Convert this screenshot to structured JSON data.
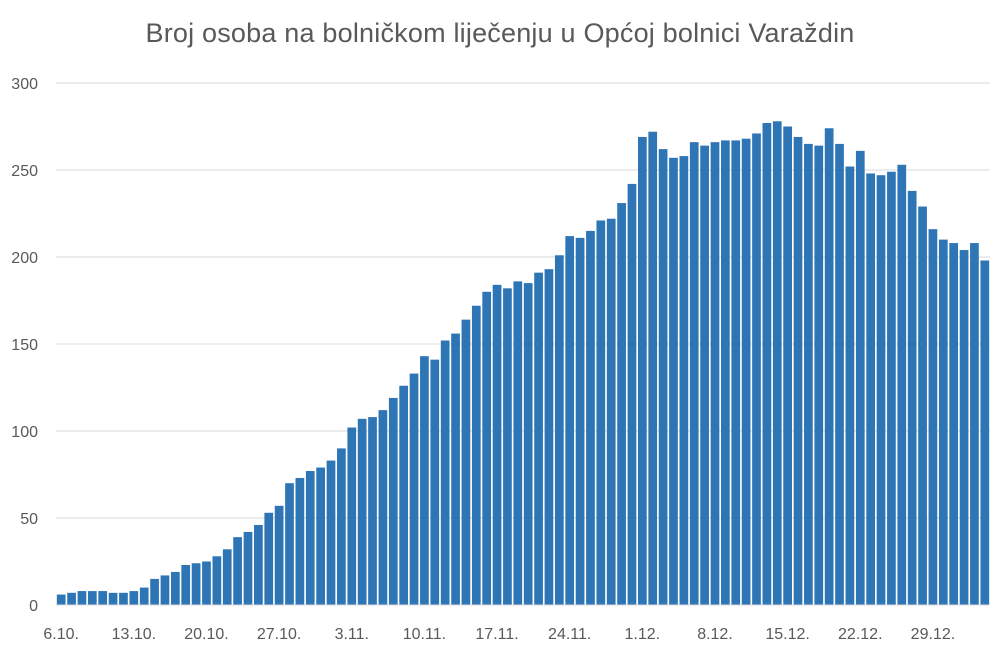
{
  "chart_data": {
    "type": "bar",
    "title": "Broj osoba na bolničkom liječenju u Općoj bolnici Varaždin",
    "xlabel": "",
    "ylabel": "",
    "ylim": [
      0,
      300
    ],
    "yticks": [
      "0",
      "50",
      "100",
      "150",
      "200",
      "250",
      "300"
    ],
    "xtick_labels": [
      "6.10.",
      "13.10.",
      "20.10.",
      "27.10.",
      "3.11.",
      "10.11.",
      "17.11.",
      "24.11.",
      "1.12.",
      "8.12.",
      "15.12.",
      "22.12.",
      "29.12."
    ],
    "grid": true,
    "bar_color": "#2E75B6",
    "values": [
      6,
      7,
      8,
      8,
      8,
      7,
      7,
      8,
      10,
      15,
      17,
      19,
      23,
      24,
      25,
      28,
      32,
      39,
      42,
      46,
      53,
      57,
      70,
      73,
      77,
      79,
      83,
      90,
      102,
      107,
      108,
      112,
      119,
      126,
      133,
      143,
      141,
      152,
      156,
      164,
      172,
      180,
      184,
      182,
      186,
      185,
      191,
      193,
      201,
      212,
      211,
      215,
      221,
      222,
      231,
      242,
      269,
      272,
      262,
      257,
      258,
      266,
      264,
      266,
      267,
      267,
      268,
      271,
      277,
      278,
      275,
      269,
      265,
      264,
      274,
      265,
      252,
      261,
      248,
      247,
      249,
      253,
      238,
      229,
      216,
      210,
      208,
      204,
      208,
      198
    ]
  }
}
